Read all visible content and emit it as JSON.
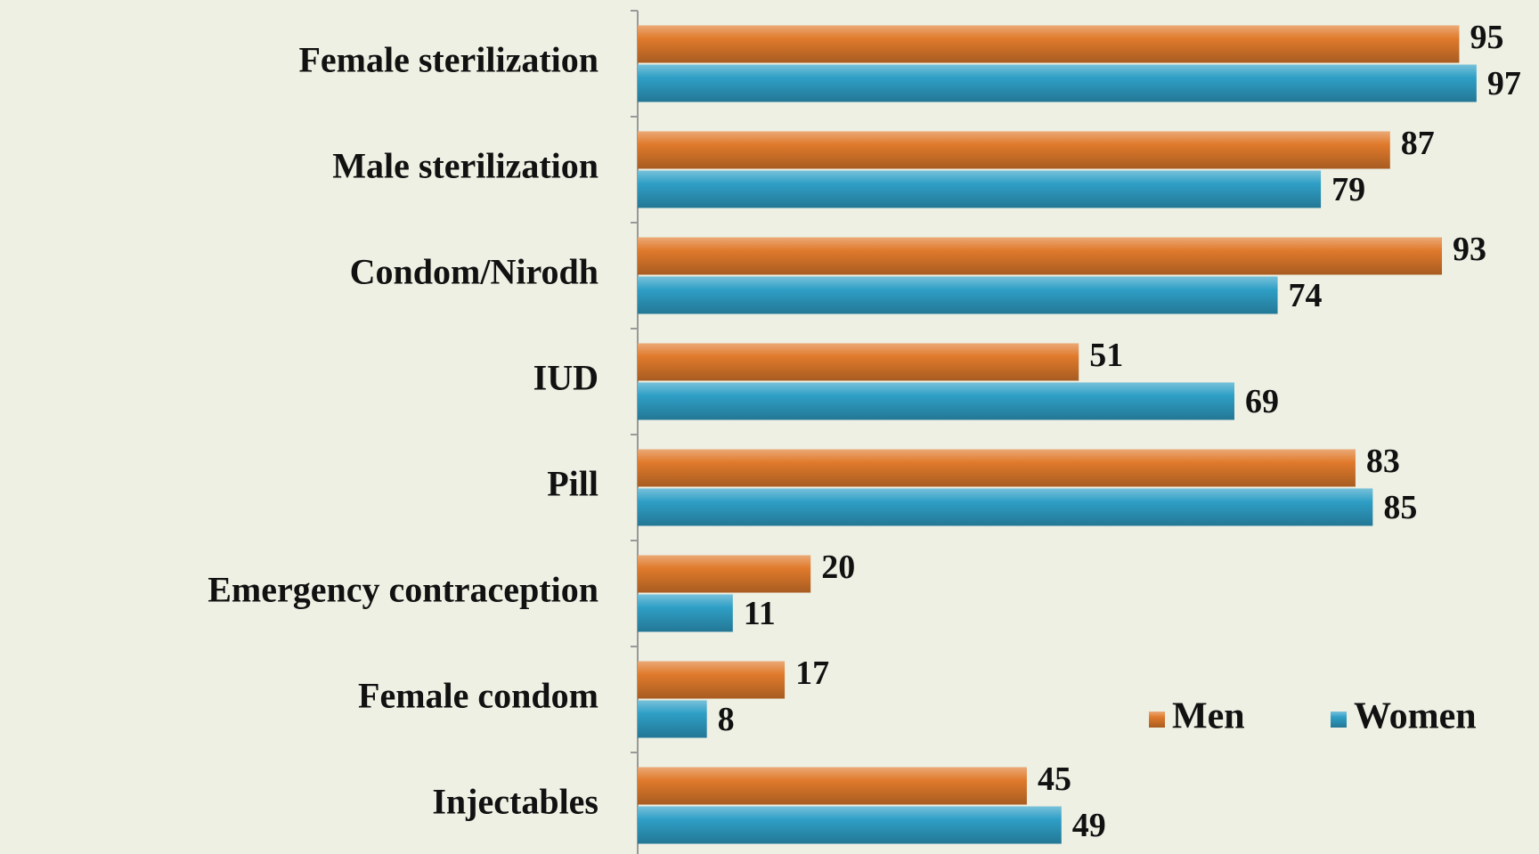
{
  "chart_data": {
    "type": "bar",
    "orientation": "horizontal",
    "categories": [
      "Female sterilization",
      "Male sterilization",
      "Condom/Nirodh",
      "IUD",
      "Pill",
      "Emergency contraception",
      "Female condom",
      "Injectables"
    ],
    "series": [
      {
        "name": "Men",
        "color": "#e07a2c",
        "values": [
          95,
          87,
          93,
          51,
          83,
          20,
          17,
          45
        ]
      },
      {
        "name": "Women",
        "color": "#2f9fc6",
        "values": [
          97,
          79,
          74,
          69,
          85,
          11,
          8,
          49
        ]
      }
    ],
    "xlim": [
      0,
      100
    ],
    "legend": "bottom-right"
  }
}
